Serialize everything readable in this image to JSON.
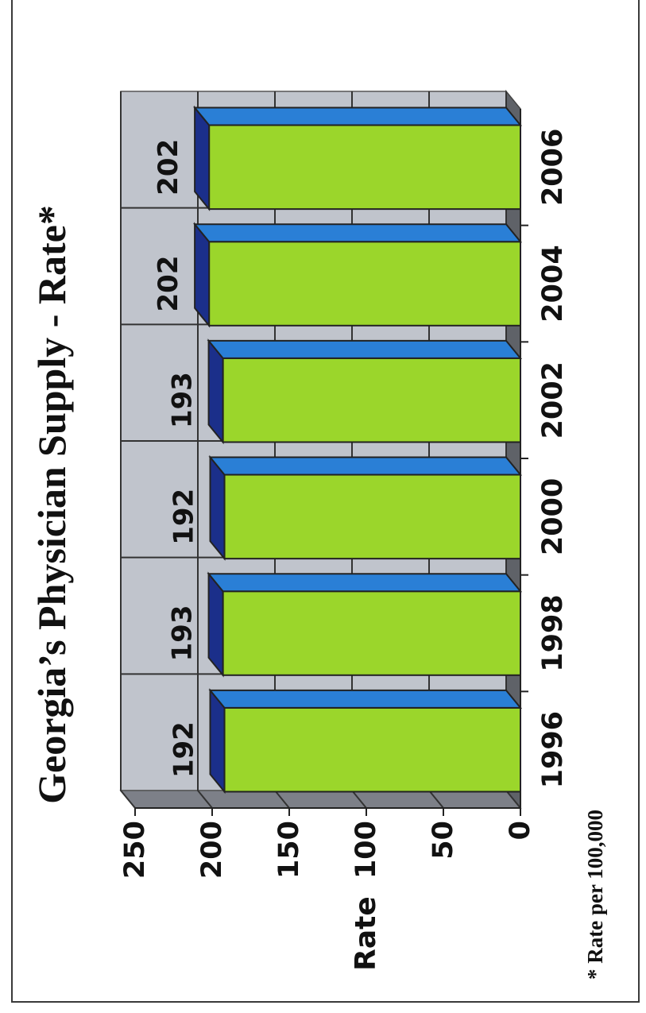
{
  "chart_data": {
    "type": "bar",
    "title": "Georgia’s Physician Supply - Rate*",
    "ylabel": "Rate",
    "xlabel": "",
    "categories": [
      "1996",
      "1998",
      "2000",
      "2002",
      "2004",
      "2006"
    ],
    "values": [
      192,
      193,
      192,
      193,
      202,
      202
    ],
    "data_labels": [
      "192",
      "193",
      "192",
      "193",
      "202",
      "202"
    ],
    "ylim": [
      0,
      250
    ],
    "y_ticks": [
      "0",
      "50",
      "100",
      "150",
      "200",
      "250"
    ],
    "grid": true,
    "orientation": "rotated 90° counter-clockwise",
    "footnote": "* Rate per 100,000",
    "colors": {
      "bar_front": "#9bd62b",
      "bar_top": "#1b2f8a",
      "bar_side": "#2a7fd6",
      "plot_background": "#c0c4cc",
      "wall_side": "#7d8088"
    }
  }
}
